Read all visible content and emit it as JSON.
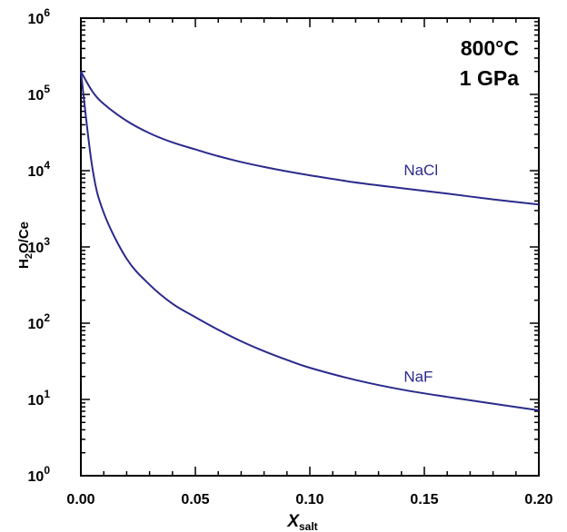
{
  "chart_data": {
    "type": "line",
    "xlabel": "X",
    "xlabel_sub": "salt",
    "ylabel": "H",
    "ylabel_sub": "2",
    "ylabel_rest": "O/Ce",
    "xlim": [
      0,
      0.2
    ],
    "ylim": [
      1,
      1000000
    ],
    "yscale": "log",
    "x_ticks": [
      0,
      0.05,
      0.1,
      0.15,
      0.2
    ],
    "x_tick_labels": [
      "0.00",
      "0.05",
      "0.10",
      "0.15",
      "0.20"
    ],
    "y_tick_exponents": [
      "0",
      "1",
      "2",
      "3",
      "4",
      "5",
      "6"
    ],
    "y_tick_base": "10",
    "annotations": [
      "800°C",
      "1 GPa"
    ],
    "line_color": "#2b2a8c",
    "grid": false,
    "series": [
      {
        "name": "NaCl",
        "x": [
          0,
          0.005,
          0.01,
          0.02,
          0.03,
          0.04,
          0.05,
          0.06,
          0.07,
          0.08,
          0.09,
          0.1,
          0.12,
          0.14,
          0.16,
          0.18,
          0.2
        ],
        "y": [
          200000,
          110000,
          75000,
          45000,
          31000,
          23500,
          19000,
          15500,
          13000,
          11200,
          9800,
          8700,
          7000,
          5900,
          5000,
          4200,
          3600
        ]
      },
      {
        "name": "NaF",
        "x": [
          0,
          0.005,
          0.01,
          0.02,
          0.03,
          0.04,
          0.05,
          0.06,
          0.07,
          0.08,
          0.09,
          0.1,
          0.12,
          0.14,
          0.16,
          0.18,
          0.2
        ],
        "y": [
          200000,
          11000,
          2800,
          700,
          320,
          180,
          120,
          82,
          58,
          43,
          33,
          26,
          18,
          13.5,
          10.8,
          8.8,
          7.2
        ]
      }
    ]
  }
}
